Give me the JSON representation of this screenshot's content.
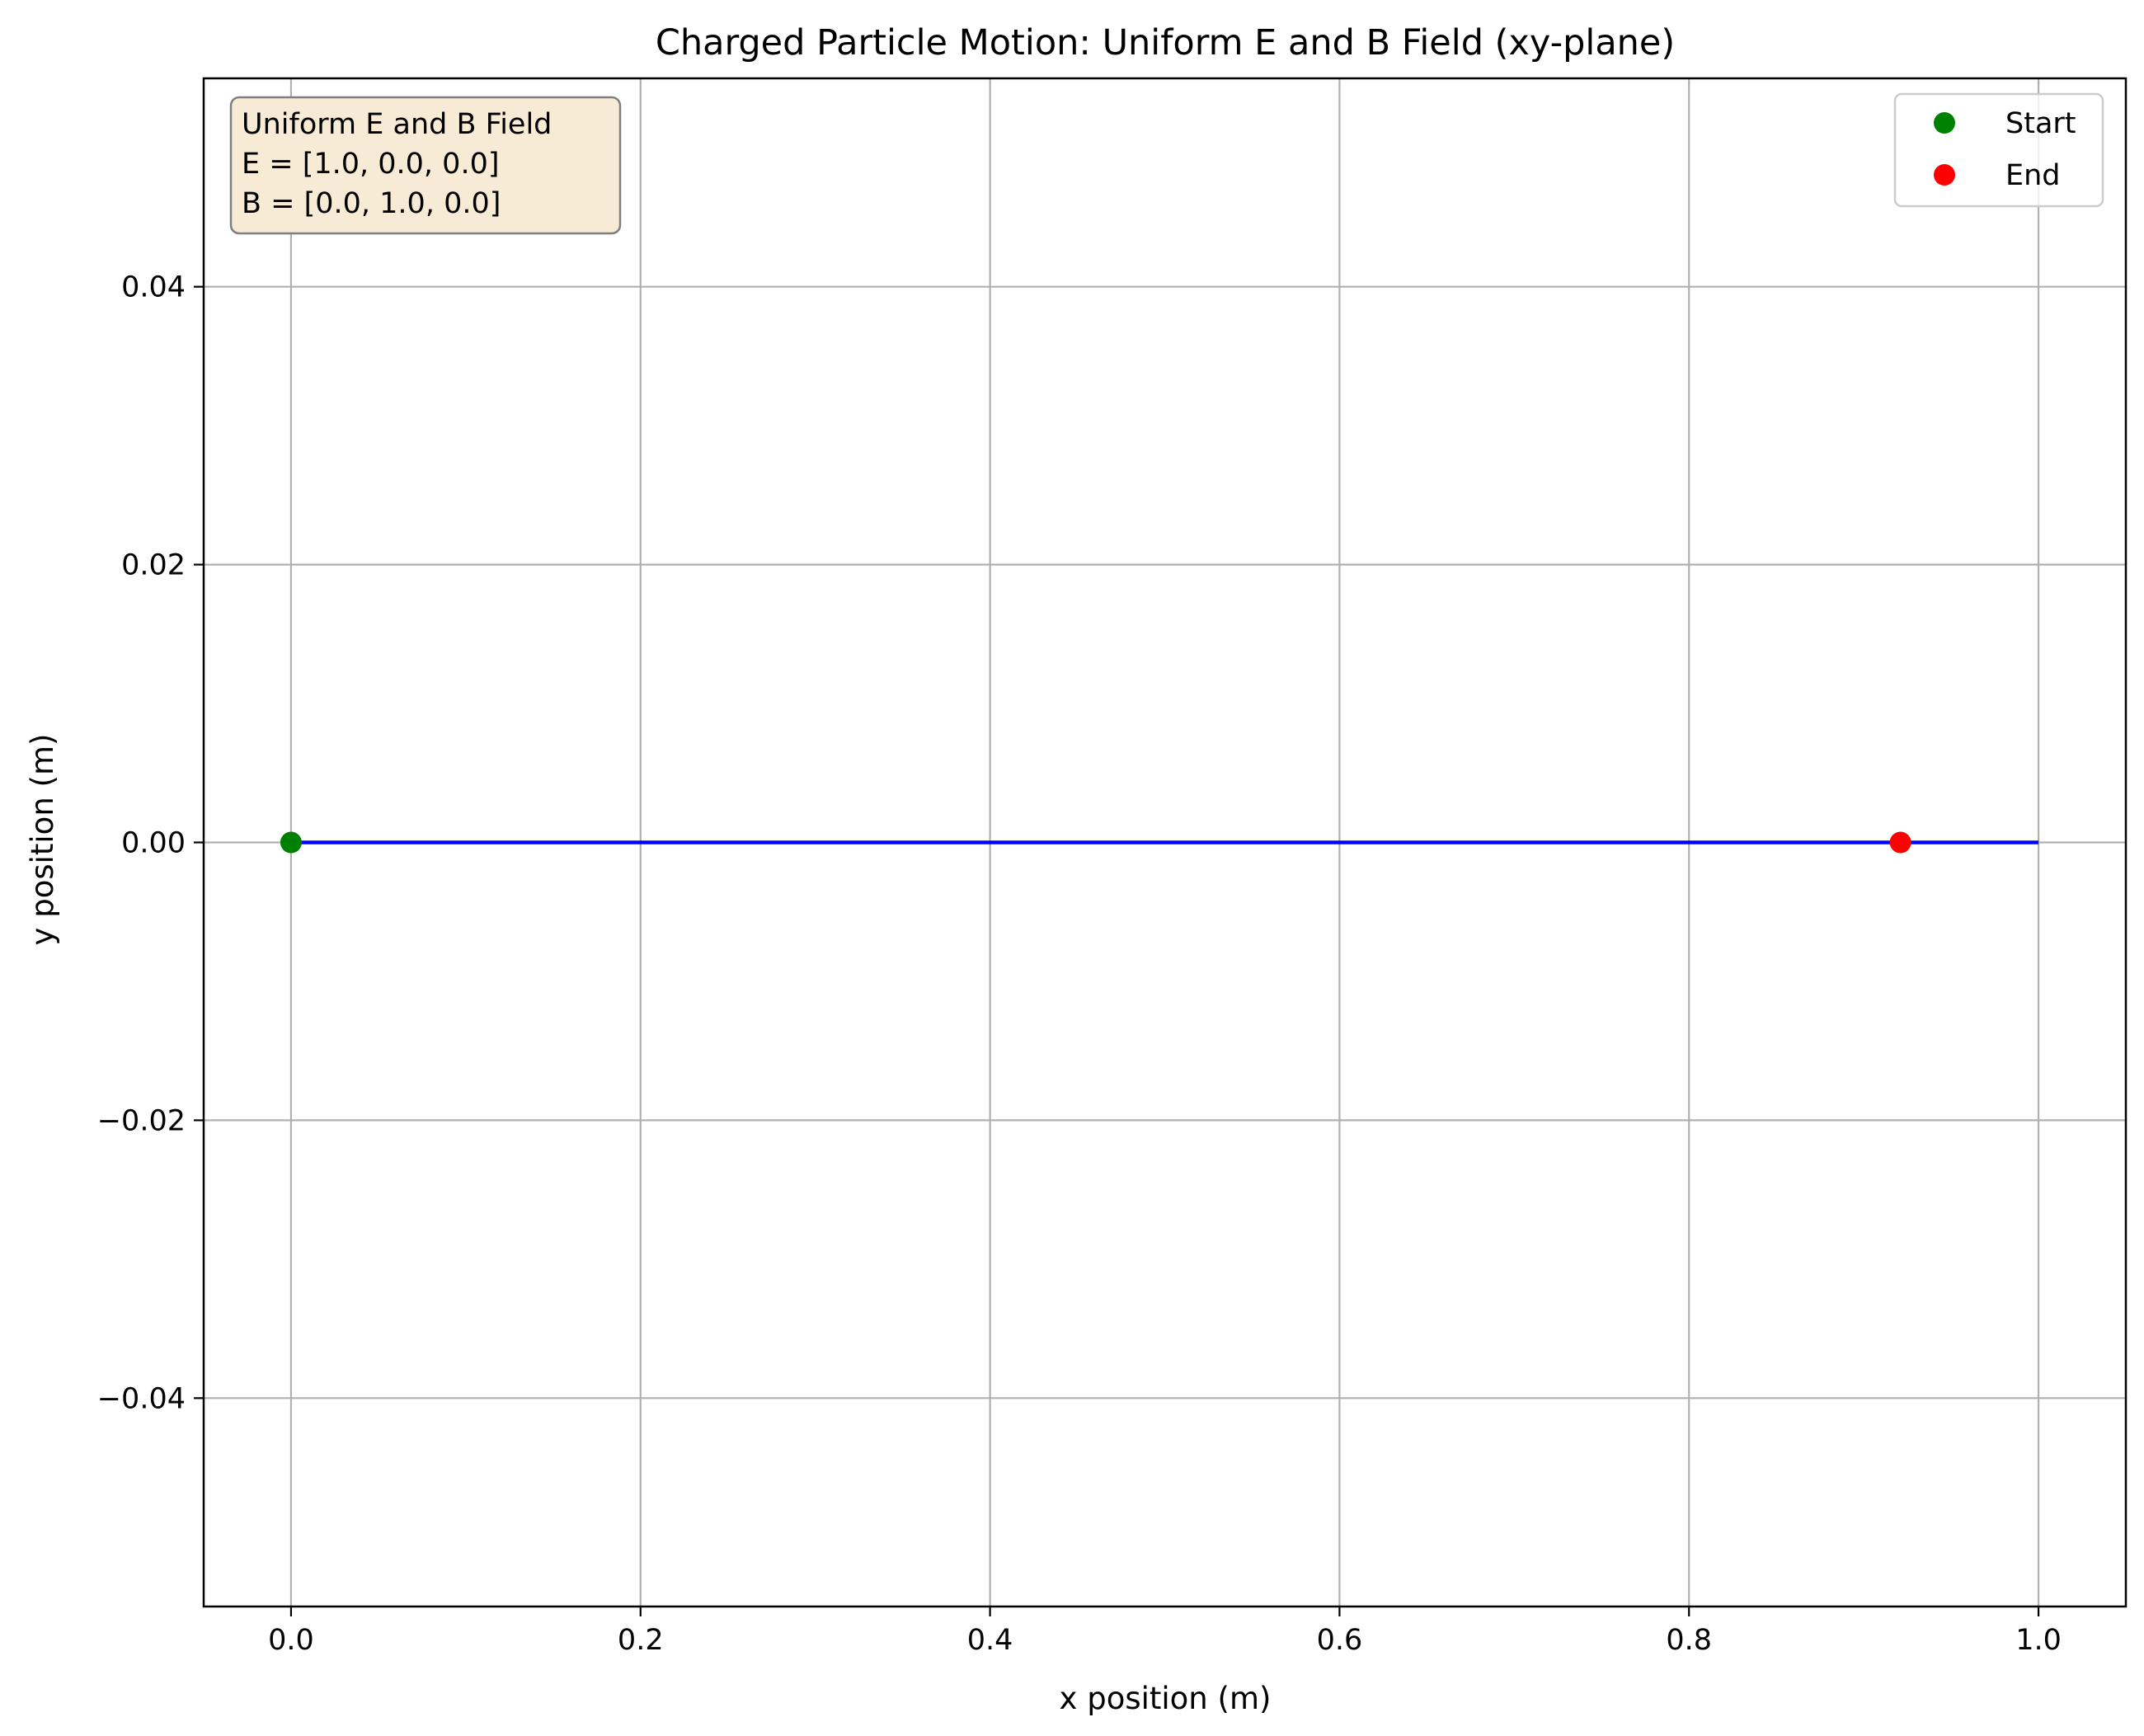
{
  "chart_data": {
    "type": "line",
    "title": "Charged Particle Motion: Uniform E and B Field (xy-plane)",
    "xlabel": "x position (m)",
    "ylabel": "y position (m)",
    "xlim": [
      -0.05,
      1.05
    ],
    "ylim": [
      -0.055,
      0.055
    ],
    "xticks": [
      0.0,
      0.2,
      0.4,
      0.6,
      0.8,
      1.0
    ],
    "xtick_labels": [
      "0.0",
      "0.2",
      "0.4",
      "0.6",
      "0.8",
      "1.0"
    ],
    "yticks": [
      -0.04,
      -0.02,
      0.0,
      0.02,
      0.04
    ],
    "ytick_labels": [
      "−0.04",
      "−0.02",
      "0.00",
      "0.02",
      "0.04"
    ],
    "grid": true,
    "series": [
      {
        "color": "#0000ff",
        "x": [
          0.0,
          0.2,
          0.4,
          0.6,
          0.8,
          0.92,
          1.0
        ],
        "y": [
          0.0,
          0.0,
          0.0,
          0.0,
          0.0,
          0.0,
          0.0
        ]
      }
    ],
    "markers": [
      {
        "name": "Start",
        "x": 0.0,
        "y": 0.0,
        "color": "#008000"
      },
      {
        "name": "End",
        "x": 0.921,
        "y": 0.0,
        "color": "#ff0000"
      }
    ],
    "legend": {
      "position": "upper right",
      "entries": [
        {
          "label": "Start",
          "color": "#008000"
        },
        {
          "label": "End",
          "color": "#ff0000"
        }
      ]
    },
    "annotation": {
      "position": "upper left",
      "lines": [
        "Uniform E and B Field",
        "E = [1.0, 0.0, 0.0]",
        "B = [0.0, 1.0, 0.0]"
      ],
      "background": "#f8ebd5",
      "border": "#7f7f7f"
    }
  }
}
